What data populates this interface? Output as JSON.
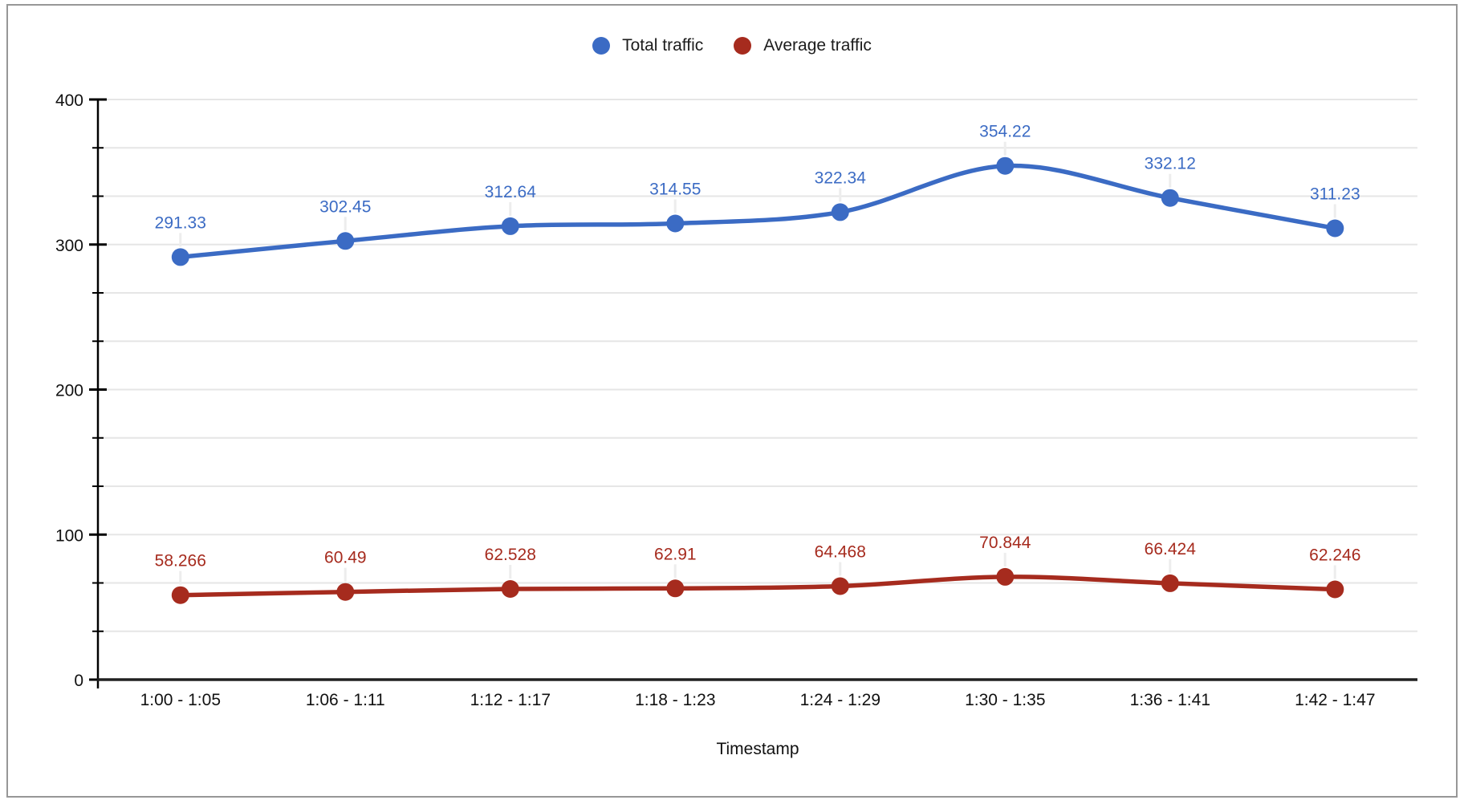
{
  "chart": {
    "background": "#ffffff",
    "frame_border_color": "#979797",
    "gridline_color": "#e6e6e6",
    "axis_color": "#000000"
  },
  "chart_data": {
    "type": "line",
    "smooth": true,
    "title": "",
    "xlabel": "Timestamp",
    "ylabel": "",
    "ylim": [
      0,
      400
    ],
    "y_major_ticks": [
      0,
      100,
      200,
      300,
      400
    ],
    "y_minor_divisions_per_major": 3,
    "grid": true,
    "legend_position": "top",
    "categories": [
      "1:00 - 1:05",
      "1:06 - 1:11",
      "1:12 - 1:17",
      "1:18 - 1:23",
      "1:24 - 1:29",
      "1:30 - 1:35",
      "1:36 - 1:41",
      "1:42 - 1:47"
    ],
    "series": [
      {
        "name": "Total traffic",
        "color": "#3b6bc4",
        "values": [
          291.33,
          302.45,
          312.64,
          314.55,
          322.34,
          354.22,
          332.12,
          311.23
        ],
        "labels": [
          "291.33",
          "302.45",
          "312.64",
          "314.55",
          "322.34",
          "354.22",
          "332.12",
          "311.23"
        ]
      },
      {
        "name": "Average traffic",
        "color": "#a62b1e",
        "values": [
          58.266,
          60.49,
          62.528,
          62.91,
          64.468,
          70.844,
          66.424,
          62.246
        ],
        "labels": [
          "58.266",
          "60.49",
          "62.528",
          "62.91",
          "64.468",
          "70.844",
          "66.424",
          "62.246"
        ]
      }
    ]
  }
}
